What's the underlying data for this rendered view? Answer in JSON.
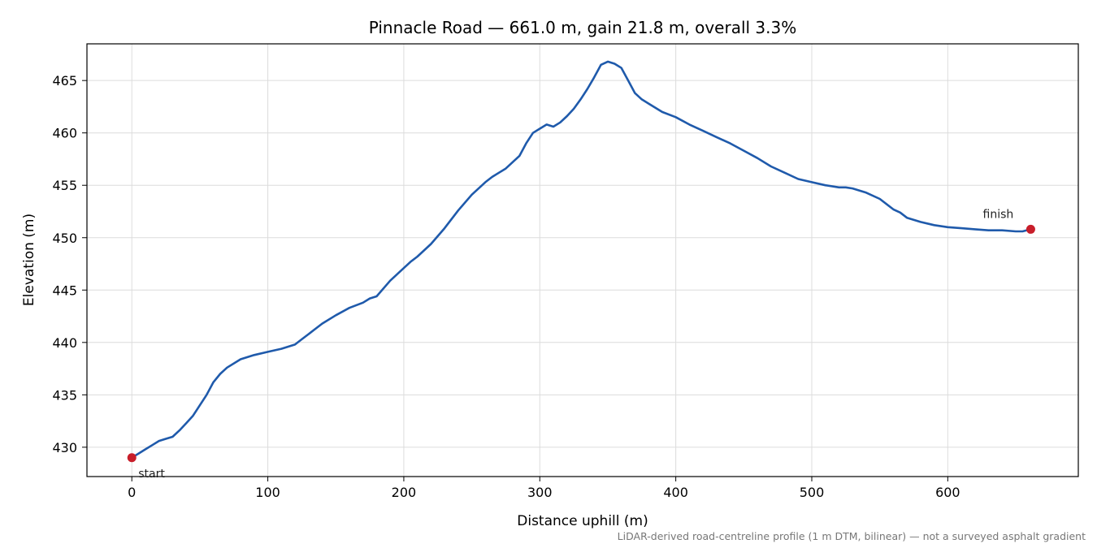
{
  "chart_data": {
    "type": "line",
    "title": "Pinnacle Road — 661.0 m, gain 21.8 m, overall 3.3%",
    "xlabel": "Distance uphill (m)",
    "ylabel": "Elevation (m)",
    "xlim": [
      -33,
      696
    ],
    "ylim": [
      427.2,
      468.5
    ],
    "xticks": [
      0,
      100,
      200,
      300,
      400,
      500,
      600
    ],
    "yticks": [
      430,
      435,
      440,
      445,
      450,
      455,
      460,
      465
    ],
    "grid": true,
    "line_color": "#1f5aab",
    "marker_color": "#c81e2a",
    "series": [
      {
        "x": [
          0,
          5,
          10,
          15,
          20,
          25,
          30,
          35,
          40,
          45,
          50,
          55,
          60,
          65,
          70,
          80,
          90,
          100,
          110,
          120,
          125,
          130,
          135,
          140,
          150,
          160,
          170,
          175,
          180,
          190,
          200,
          205,
          210,
          220,
          230,
          240,
          250,
          260,
          265,
          270,
          275,
          280,
          285,
          290,
          295,
          300,
          305,
          310,
          315,
          320,
          325,
          330,
          335,
          340,
          345,
          350,
          355,
          360,
          365,
          370,
          375,
          380,
          390,
          400,
          410,
          420,
          430,
          440,
          450,
          460,
          470,
          480,
          490,
          500,
          510,
          520,
          525,
          530,
          540,
          550,
          560,
          565,
          570,
          580,
          590,
          600,
          610,
          620,
          630,
          640,
          650,
          655,
          661
        ],
        "y": [
          429.0,
          429.4,
          429.8,
          430.2,
          430.6,
          430.8,
          431.0,
          431.6,
          432.3,
          433.0,
          434.0,
          435.0,
          436.2,
          437.0,
          437.6,
          438.4,
          438.8,
          439.1,
          439.4,
          439.8,
          440.3,
          440.8,
          441.3,
          441.8,
          442.6,
          443.3,
          443.8,
          444.2,
          444.4,
          445.9,
          447.1,
          447.7,
          448.2,
          449.4,
          450.9,
          452.6,
          454.1,
          455.3,
          455.8,
          456.2,
          456.6,
          457.2,
          457.8,
          459.0,
          460.0,
          460.4,
          460.8,
          460.6,
          461.0,
          461.6,
          462.3,
          463.2,
          464.2,
          465.3,
          466.5,
          466.8,
          466.6,
          466.2,
          465.0,
          463.8,
          463.2,
          462.8,
          462.0,
          461.5,
          460.8,
          460.2,
          459.6,
          459.0,
          458.3,
          457.6,
          456.8,
          456.2,
          455.6,
          455.3,
          455.0,
          454.8,
          454.8,
          454.7,
          454.3,
          453.7,
          452.7,
          452.4,
          451.9,
          451.5,
          451.2,
          451.0,
          450.9,
          450.8,
          450.7,
          450.7,
          450.6,
          450.6,
          450.8
        ]
      }
    ],
    "annotations": [
      {
        "text": "start",
        "x": 0,
        "y": 429.0
      },
      {
        "text": "finish",
        "x": 661,
        "y": 450.8
      }
    ],
    "footnote": "LiDAR-derived road-centreline profile (1 m DTM, bilinear) — not a surveyed asphalt gradient"
  }
}
